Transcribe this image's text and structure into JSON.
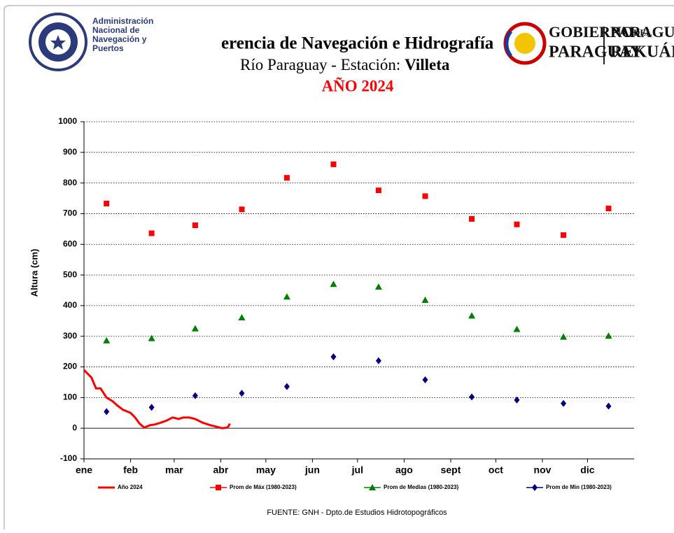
{
  "header": {
    "agency": [
      "Administración",
      "Nacional de",
      "Navegación y",
      "Puertos"
    ],
    "title": "erencia de Navegación e Hidrografía",
    "subtitle": "Río Paraguay - Estación:",
    "station": "Villeta",
    "gov": [
      "GOBIERNO",
      "DEL",
      "PARAGUAY",
      "PARAGUÁI",
      "REKUÁI"
    ]
  },
  "chart_data": {
    "type": "scatter",
    "title": "AÑO 2024",
    "y_label": "Altura (cm)",
    "source": "FUENTE:  GNH  - Dpto.de Estudios Hidrotopográficos",
    "xlim": [
      0,
      366
    ],
    "xticks": [
      {
        "value": 0,
        "label": "ene"
      },
      {
        "value": 31,
        "label": "feb"
      },
      {
        "value": 60,
        "label": "mar"
      },
      {
        "value": 91,
        "label": "abr"
      },
      {
        "value": 121,
        "label": "may"
      },
      {
        "value": 152,
        "label": "jun"
      },
      {
        "value": 182,
        "label": "jul"
      },
      {
        "value": 213,
        "label": "ago"
      },
      {
        "value": 244,
        "label": "sept"
      },
      {
        "value": 274,
        "label": "oct"
      },
      {
        "value": 305,
        "label": "nov"
      },
      {
        "value": 335,
        "label": "dic"
      }
    ],
    "ylim": [
      -100,
      1000
    ],
    "yticks": [
      -100,
      0,
      100,
      200,
      300,
      400,
      500,
      600,
      700,
      800,
      900,
      1000
    ],
    "grid": true,
    "series": [
      {
        "name": "Año 2024",
        "color": "#ff0000",
        "marker": "line",
        "x": [
          0,
          5,
          8,
          11,
          15,
          19,
          22,
          26,
          31,
          34,
          37,
          40,
          44,
          47,
          51,
          55,
          59,
          63,
          66,
          70,
          74,
          79,
          84,
          88,
          92,
          95,
          96,
          97
        ],
        "values": [
          190,
          165,
          130,
          130,
          100,
          88,
          75,
          60,
          50,
          35,
          15,
          2,
          10,
          12,
          18,
          25,
          35,
          30,
          35,
          35,
          30,
          18,
          10,
          5,
          0,
          2,
          5,
          15
        ]
      },
      {
        "name": "Prom de Máx  (1980-2023)",
        "color": "#ff0000",
        "marker": "square",
        "x": [
          15,
          45,
          74,
          105,
          135,
          166,
          196,
          227,
          258,
          288,
          319,
          349
        ],
        "values": [
          733,
          636,
          662,
          714,
          817,
          861,
          776,
          757,
          683,
          665,
          630,
          717
        ]
      },
      {
        "name": "Prom de Medias  (1980-2023)",
        "color": "#008000",
        "marker": "triangle",
        "x": [
          15,
          45,
          74,
          105,
          135,
          166,
          196,
          227,
          258,
          288,
          319,
          349
        ],
        "values": [
          286,
          293,
          325,
          361,
          429,
          470,
          461,
          418,
          367,
          323,
          298,
          301
        ]
      },
      {
        "name": "Prom de Min  (1980-2023)",
        "color": "#000080",
        "marker": "diamond",
        "x": [
          15,
          45,
          74,
          105,
          135,
          166,
          196,
          227,
          258,
          288,
          319,
          349
        ],
        "values": [
          54,
          68,
          106,
          114,
          136,
          233,
          220,
          158,
          102,
          92,
          81,
          72
        ]
      }
    ]
  }
}
